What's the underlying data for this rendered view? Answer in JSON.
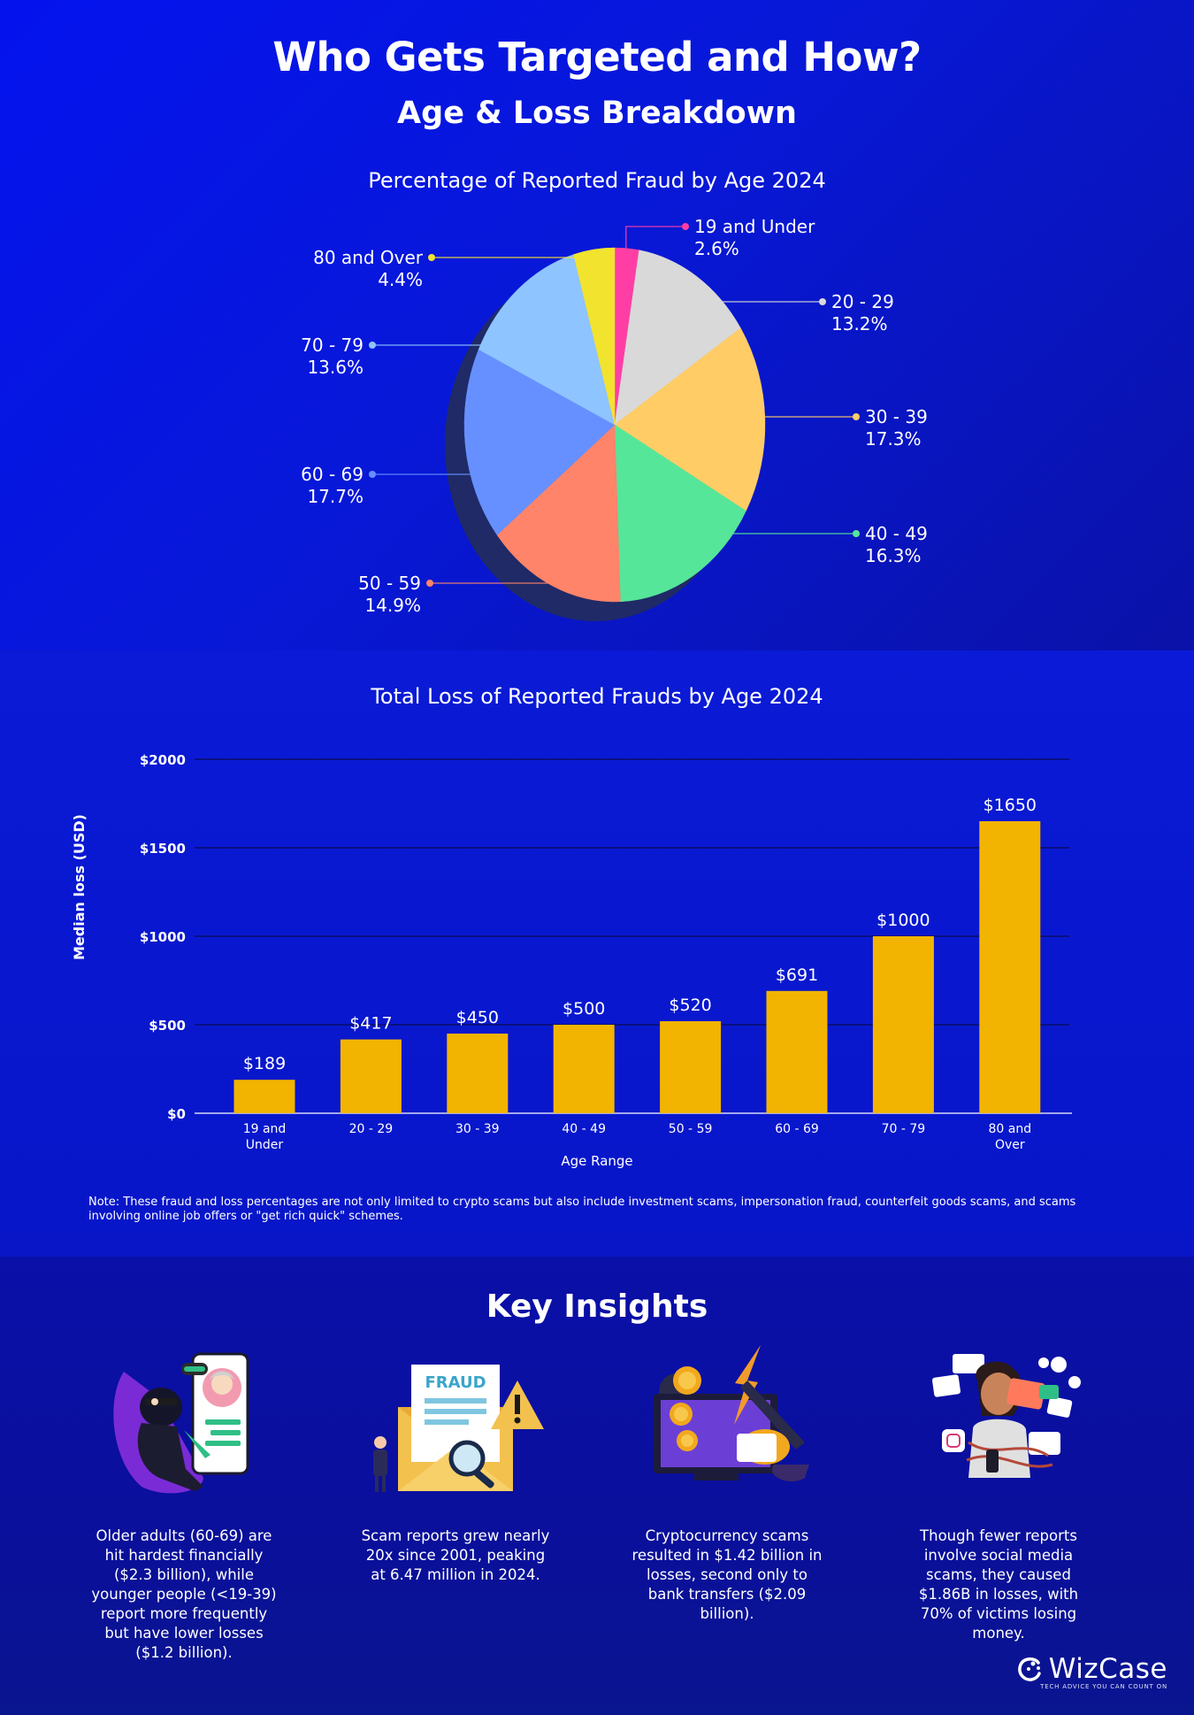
{
  "header": {
    "title": "Who Gets Targeted and How?",
    "subtitle": "Age & Loss Breakdown"
  },
  "pie": {
    "title": "Percentage of Reported Fraud by Age 2024"
  },
  "bar": {
    "title": "Total Loss of Reported Frauds by Age 2024",
    "note": "Note: These fraud and loss percentages are not only limited to crypto scams but also include investment scams, impersonation fraud, counterfeit goods scams, and scams involving online job offers or \"get rich quick\" schemes."
  },
  "chart_data": [
    {
      "type": "pie",
      "title": "Percentage of Reported Fraud by Age 2024",
      "slices": [
        {
          "label": "19 and Under",
          "value": 2.6,
          "value_text": "2.6%",
          "color": "#ff3ea5"
        },
        {
          "label": "20 - 29",
          "value": 13.2,
          "value_text": "13.2%",
          "color": "#d9d9d9"
        },
        {
          "label": "30 - 39",
          "value": 17.3,
          "value_text": "17.3%",
          "color": "#ffcc66"
        },
        {
          "label": "40 - 49",
          "value": 16.3,
          "value_text": "16.3%",
          "color": "#55e69a"
        },
        {
          "label": "50 - 59",
          "value": 14.9,
          "value_text": "14.9%",
          "color": "#ff8469"
        },
        {
          "label": "60 - 69",
          "value": 17.7,
          "value_text": "17.7%",
          "color": "#6690ff"
        },
        {
          "label": "70 - 79",
          "value": 13.6,
          "value_text": "13.6%",
          "color": "#8ec4ff"
        },
        {
          "label": "80 and Over",
          "value": 4.4,
          "value_text": "4.4%",
          "color": "#f2e32e"
        }
      ]
    },
    {
      "type": "bar",
      "title": "Total Loss of Reported Frauds by Age 2024",
      "xlabel": "Age Range",
      "ylabel": "Median loss (USD)",
      "ylim": [
        0,
        2000
      ],
      "yticks": [
        0,
        500,
        1000,
        1500,
        2000
      ],
      "ytick_labels": [
        "$0",
        "$500",
        "$1000",
        "$1500",
        "$2000"
      ],
      "categories": [
        [
          "19 and",
          "Under"
        ],
        [
          "20 - 29"
        ],
        [
          "30 - 39"
        ],
        [
          "40 - 49"
        ],
        [
          "50 - 59"
        ],
        [
          "60 - 69"
        ],
        [
          "70 - 79"
        ],
        [
          "80 and",
          "Over"
        ]
      ],
      "values": [
        189,
        417,
        450,
        500,
        520,
        691,
        1000,
        1650
      ],
      "value_labels": [
        "$189",
        "$417",
        "$450",
        "$500",
        "$520",
        "$691",
        "$1000",
        "$1650"
      ],
      "bar_color": "#f2b400",
      "grid": true
    }
  ],
  "insights": {
    "title": "Key Insights",
    "items": [
      {
        "text": "Older adults (60-69) are hit hardest financially ($2.3 billion), while younger people (<19-39) report more frequently but have lower losses ($1.2 billion).",
        "icon": "scammer-phone-icon"
      },
      {
        "text": "Scam reports grew nearly 20x since 2001, peaking at 6.47 million in 2024.",
        "icon": "fraud-envelope-icon",
        "icon_text": "FRAUD"
      },
      {
        "text": "Cryptocurrency scams resulted in $1.42 billion in losses, second only to bank transfers ($2.09 billion).",
        "icon": "crypto-scam-icon"
      },
      {
        "text": "Though fewer reports involve social media scams, they caused $1.86B in losses, with 70% of victims losing money.",
        "icon": "social-media-icon"
      }
    ]
  },
  "brand": {
    "name": "WizCase",
    "tagline": "TECH ADVICE YOU CAN COUNT ON"
  }
}
